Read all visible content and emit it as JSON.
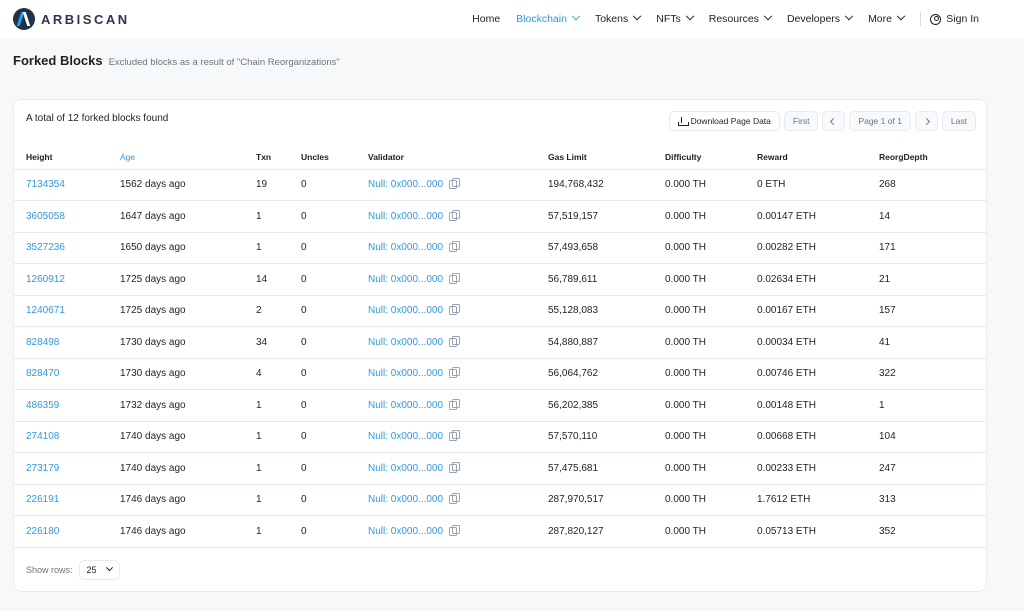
{
  "brand": {
    "name": "ARBISCAN"
  },
  "nav": {
    "items": [
      {
        "label": "Home",
        "dropdown": false,
        "active": false
      },
      {
        "label": "Blockchain",
        "dropdown": true,
        "active": true
      },
      {
        "label": "Tokens",
        "dropdown": true,
        "active": false
      },
      {
        "label": "NFTs",
        "dropdown": true,
        "active": false
      },
      {
        "label": "Resources",
        "dropdown": true,
        "active": false
      },
      {
        "label": "Developers",
        "dropdown": true,
        "active": false
      },
      {
        "label": "More",
        "dropdown": true,
        "active": false
      }
    ],
    "signin_label": "Sign In"
  },
  "page": {
    "title": "Forked Blocks",
    "subtitle": "Excluded blocks as a result of \"Chain Reorganizations\""
  },
  "card": {
    "summary": "A total of 12 forked blocks found",
    "pager": {
      "download_label": "Download Page Data",
      "first_label": "First",
      "page_label": "Page 1 of 1",
      "last_label": "Last"
    },
    "columns": [
      "Height",
      "Age",
      "Txn",
      "Uncles",
      "Validator",
      "Gas Limit",
      "Difficulty",
      "Reward",
      "ReorgDepth"
    ],
    "rows": [
      {
        "height": "7134354",
        "age": "1562 days ago",
        "txn": "19",
        "uncles": "0",
        "validator": "Null: 0x000...000",
        "gas_limit": "194,768,432",
        "difficulty": "0.000 TH",
        "reward": "0 ETH",
        "reorg_depth": "268"
      },
      {
        "height": "3605058",
        "age": "1647 days ago",
        "txn": "1",
        "uncles": "0",
        "validator": "Null: 0x000...000",
        "gas_limit": "57,519,157",
        "difficulty": "0.000 TH",
        "reward": "0.00147 ETH",
        "reorg_depth": "14"
      },
      {
        "height": "3527236",
        "age": "1650 days ago",
        "txn": "1",
        "uncles": "0",
        "validator": "Null: 0x000...000",
        "gas_limit": "57,493,658",
        "difficulty": "0.000 TH",
        "reward": "0.00282 ETH",
        "reorg_depth": "171"
      },
      {
        "height": "1260912",
        "age": "1725 days ago",
        "txn": "14",
        "uncles": "0",
        "validator": "Null: 0x000...000",
        "gas_limit": "56,789,611",
        "difficulty": "0.000 TH",
        "reward": "0.02634 ETH",
        "reorg_depth": "21"
      },
      {
        "height": "1240671",
        "age": "1725 days ago",
        "txn": "2",
        "uncles": "0",
        "validator": "Null: 0x000...000",
        "gas_limit": "55,128,083",
        "difficulty": "0.000 TH",
        "reward": "0.00167 ETH",
        "reorg_depth": "157"
      },
      {
        "height": "828498",
        "age": "1730 days ago",
        "txn": "34",
        "uncles": "0",
        "validator": "Null: 0x000...000",
        "gas_limit": "54,880,887",
        "difficulty": "0.000 TH",
        "reward": "0.00034 ETH",
        "reorg_depth": "41"
      },
      {
        "height": "828470",
        "age": "1730 days ago",
        "txn": "4",
        "uncles": "0",
        "validator": "Null: 0x000...000",
        "gas_limit": "56,064,762",
        "difficulty": "0.000 TH",
        "reward": "0.00746 ETH",
        "reorg_depth": "322"
      },
      {
        "height": "486359",
        "age": "1732 days ago",
        "txn": "1",
        "uncles": "0",
        "validator": "Null: 0x000...000",
        "gas_limit": "56,202,385",
        "difficulty": "0.000 TH",
        "reward": "0.00148 ETH",
        "reorg_depth": "1"
      },
      {
        "height": "274108",
        "age": "1740 days ago",
        "txn": "1",
        "uncles": "0",
        "validator": "Null: 0x000...000",
        "gas_limit": "57,570,110",
        "difficulty": "0.000 TH",
        "reward": "0.00668 ETH",
        "reorg_depth": "104"
      },
      {
        "height": "273179",
        "age": "1740 days ago",
        "txn": "1",
        "uncles": "0",
        "validator": "Null: 0x000...000",
        "gas_limit": "57,475,681",
        "difficulty": "0.000 TH",
        "reward": "0.00233 ETH",
        "reorg_depth": "247"
      },
      {
        "height": "226191",
        "age": "1746 days ago",
        "txn": "1",
        "uncles": "0",
        "validator": "Null: 0x000...000",
        "gas_limit": "287,970,517",
        "difficulty": "0.000 TH",
        "reward": "1.7612 ETH",
        "reorg_depth": "313"
      },
      {
        "height": "226180",
        "age": "1746 days ago",
        "txn": "1",
        "uncles": "0",
        "validator": "Null: 0x000...000",
        "gas_limit": "287,820,127",
        "difficulty": "0.000 TH",
        "reward": "0.05713 ETH",
        "reorg_depth": "352"
      }
    ],
    "show_rows_label": "Show rows:",
    "show_rows_value": "25"
  },
  "colors": {
    "accent": "#3498db",
    "brand_dark": "#213147",
    "brand_blue": "#28a0f0"
  },
  "icons": {
    "signin": "user-circle-icon",
    "download": "download-icon",
    "copy": "copy-icon",
    "dropdown": "chevron-down-icon"
  }
}
